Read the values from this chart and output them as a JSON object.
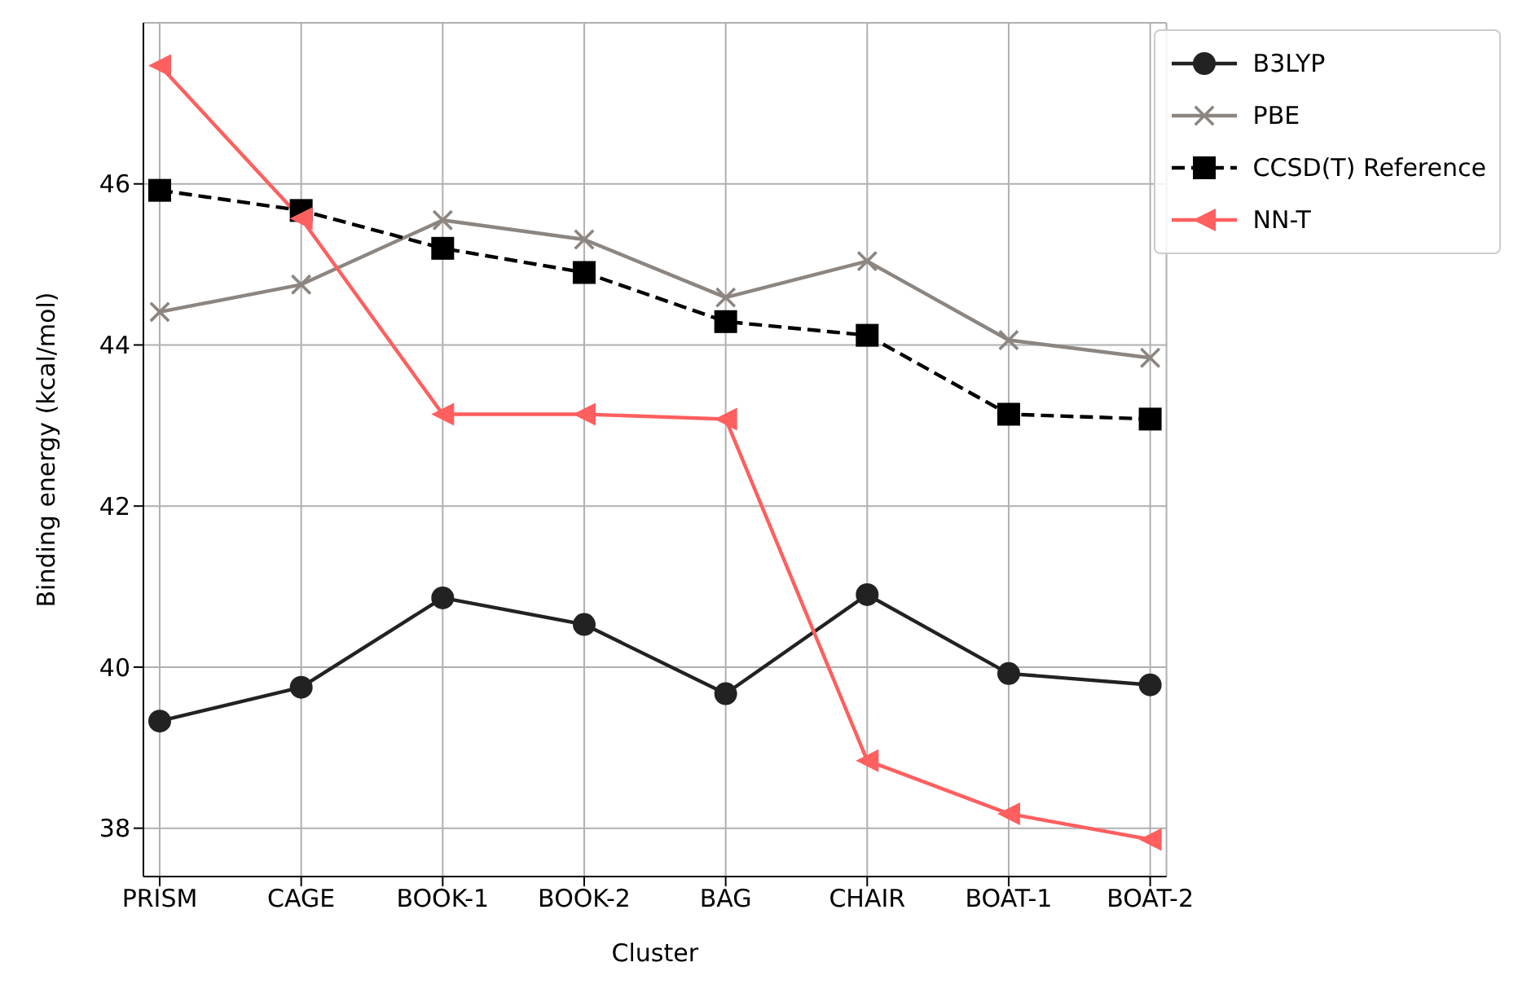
{
  "chart_data": {
    "type": "line",
    "xlabel": "Cluster",
    "ylabel": "Binding energy (kcal/mol)",
    "categories": [
      "PRISM",
      "CAGE",
      "BOOK-1",
      "BOOK-2",
      "BAG",
      "CHAIR",
      "BOAT-1",
      "BOAT-2"
    ],
    "series": [
      {
        "name": "B3LYP",
        "color": "#222222",
        "marker": "circle",
        "line_style": "solid",
        "values": [
          39.33,
          39.75,
          40.86,
          40.53,
          39.67,
          40.9,
          39.92,
          39.78
        ]
      },
      {
        "name": "PBE",
        "color": "#8c8580",
        "marker": "cross",
        "line_style": "solid",
        "values": [
          44.41,
          44.75,
          45.55,
          45.31,
          44.59,
          45.04,
          44.06,
          43.84
        ]
      },
      {
        "name": "CCSD(T) Reference",
        "color": "#000000",
        "marker": "square",
        "line_style": "dashed",
        "values": [
          45.92,
          45.67,
          45.2,
          44.9,
          44.29,
          44.12,
          43.14,
          43.08
        ]
      },
      {
        "name": "NN-T",
        "color": "#ff5f5f",
        "marker": "triangle",
        "line_style": "solid",
        "values": [
          47.47,
          45.57,
          43.14,
          43.14,
          43.08,
          38.84,
          38.18,
          37.86
        ]
      }
    ],
    "ylim": [
      37.4,
      48.0
    ],
    "yticks": [
      38,
      40,
      42,
      44,
      46
    ],
    "grid": true,
    "legend": "top right"
  }
}
